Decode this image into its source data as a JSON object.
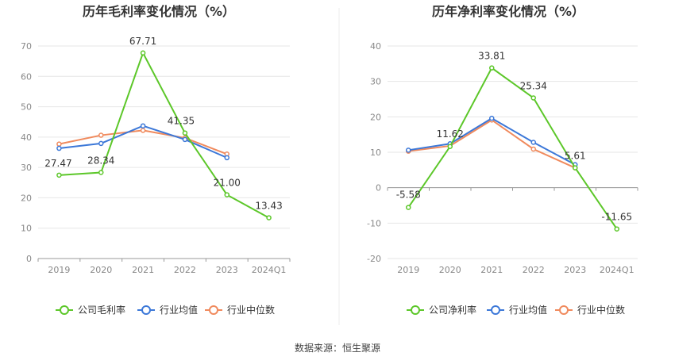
{
  "source_text": "数据来源：恒生聚源",
  "colors": {
    "company": "#5cc729",
    "industry_avg": "#3c78d8",
    "industry_median": "#f08a5d",
    "grid": "#e6e6e6",
    "axis_text": "#888888"
  },
  "chart_data": [
    {
      "type": "line",
      "title": "历年毛利率变化情况（%）",
      "categories": [
        "2019",
        "2020",
        "2021",
        "2022",
        "2023",
        "2024Q1"
      ],
      "ylim": [
        0,
        70
      ],
      "yticks": [
        0,
        10,
        20,
        30,
        40,
        50,
        60,
        70
      ],
      "grid": true,
      "legend_position": "bottom",
      "series": [
        {
          "name": "公司毛利率",
          "color": "#5cc729",
          "values": [
            27.47,
            28.34,
            67.71,
            41.35,
            21.0,
            13.43
          ],
          "labels": [
            "27.47",
            "28.34",
            "67.71",
            "41.35",
            "21.00",
            "13.43"
          ]
        },
        {
          "name": "行业均值",
          "color": "#3c78d8",
          "values": [
            36.3,
            37.9,
            43.7,
            39.2,
            33.2,
            null
          ]
        },
        {
          "name": "行业中位数",
          "color": "#f08a5d",
          "values": [
            37.7,
            40.6,
            42.2,
            39.7,
            34.4,
            null
          ]
        }
      ]
    },
    {
      "type": "line",
      "title": "历年净利率变化情况（%）",
      "categories": [
        "2019",
        "2020",
        "2021",
        "2022",
        "2023",
        "2024Q1"
      ],
      "ylim": [
        -20,
        40
      ],
      "yticks": [
        -20,
        -10,
        0,
        10,
        20,
        30,
        40
      ],
      "grid": true,
      "legend_position": "bottom",
      "series": [
        {
          "name": "公司净利率",
          "color": "#5cc729",
          "values": [
            -5.58,
            11.62,
            33.81,
            25.34,
            5.61,
            -11.65
          ],
          "labels": [
            "-5.58",
            "11.62",
            "33.81",
            "25.34",
            "5.61",
            "-11.65"
          ]
        },
        {
          "name": "行业均值",
          "color": "#3c78d8",
          "values": [
            10.6,
            12.4,
            19.6,
            12.8,
            6.5,
            null
          ]
        },
        {
          "name": "行业中位数",
          "color": "#f08a5d",
          "values": [
            10.3,
            11.8,
            19.1,
            10.9,
            5.6,
            null
          ]
        }
      ]
    }
  ]
}
